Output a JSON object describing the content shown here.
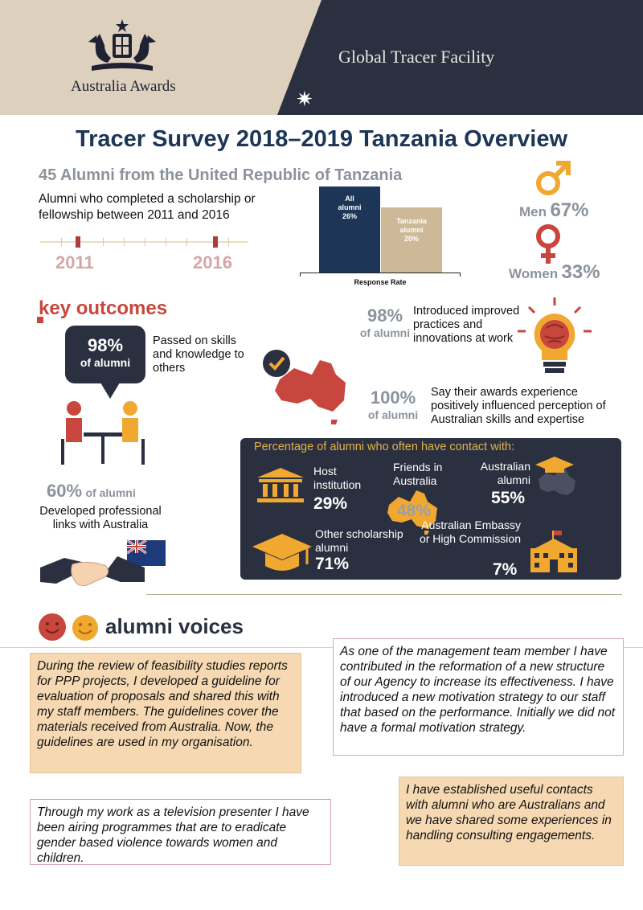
{
  "header": {
    "brand": "Australia Awards",
    "facility": "Global Tracer Facility",
    "colors": {
      "tan": "#ddd0bd",
      "navy": "#2b3040",
      "red": "#c7463d",
      "gold": "#f0a830"
    }
  },
  "title": "Tracer Survey 2018–2019 Tanzania Overview",
  "summary": {
    "alumni_count": "45 Alumni from the United Republic of Tanzania",
    "cohort_text": "Alumni who completed a scholarship or fellowship between 2011 and 2016",
    "year_start": "2011",
    "year_end": "2016"
  },
  "response_chart": {
    "all_label_1": "All",
    "all_label_2": "alumni",
    "all_value": "26%",
    "tz_label_1": "Tanzania",
    "tz_label_2": "alumni",
    "tz_value": "20%",
    "axis_label": "Response Rate"
  },
  "chart_data": {
    "type": "bar",
    "categories": [
      "All alumni",
      "Tanzania alumni"
    ],
    "values": [
      26,
      20
    ],
    "xlabel": "Response Rate"
  },
  "gender": {
    "men_label": "Men",
    "men_pct": "67%",
    "women_label": "Women",
    "women_pct": "33%"
  },
  "key_outcomes": {
    "title": "key outcomes",
    "skills_pct": "98%",
    "skills_unit": "of alumni",
    "skills_text": "Passed on skills and knowledge to others",
    "practices_pct": "98%",
    "practices_unit": "of alumni",
    "practices_text": "Introduced improved practices and innovations at work",
    "perception_pct": "100%",
    "perception_unit": "of alumni",
    "perception_text": "Say their awards experience positively influenced perception of Australian skills and expertise",
    "links_pct": "60%",
    "links_unit": "of alumni",
    "links_text": "Developed professional links with Australia"
  },
  "contact": {
    "title": "Percentage of alumni who often have contact with:",
    "host_label": "Host institution",
    "host_pct": "29%",
    "friends_label": "Friends in Australia",
    "friends_pct": "48%",
    "aus_alumni_label": "Australian alumni",
    "aus_alumni_pct": "55%",
    "other_label": "Other scholarship alumni",
    "other_pct": "71%",
    "embassy_label": "Australian Embassy or High Commission",
    "embassy_pct": "7%"
  },
  "voices": {
    "title": "alumni voices",
    "q1": "During the review of feasibility studies reports for PPP projects, I developed a guideline for evaluation of proposals and shared this with my staff members. The guidelines cover the materials received from Australia. Now, the guidelines are used in my organisation.",
    "q2": "As one of the management team member I have contributed in the reformation of a new structure of our Agency to increase its effectiveness. I have introduced a new motivation strategy to our staff that based on the performance. Initially we did not have a formal motivation strategy.",
    "q3": "Through my work as a television presenter I have been airing programmes that are to eradicate gender based violence towards women and children.",
    "q4": "I have established useful contacts with alumni who are Australians and we have shared some experiences in handling consulting engagements."
  }
}
